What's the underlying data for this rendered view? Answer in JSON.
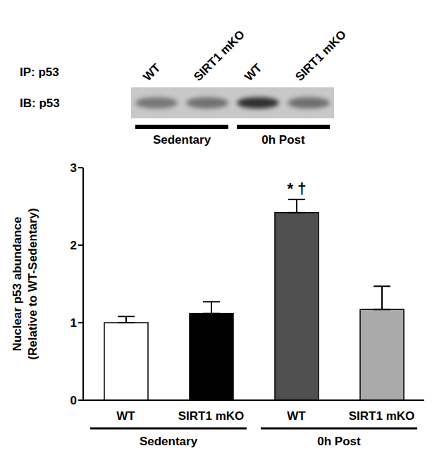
{
  "blot": {
    "ip_label": "IP: p53",
    "ib_label": "IB: p53",
    "lanes": [
      "WT",
      "SIRT1 mKO",
      "WT",
      "SIRT1 mKO"
    ],
    "group_labels": [
      "Sedentary",
      "0h Post"
    ]
  },
  "chart_data": {
    "type": "bar",
    "categories": [
      "WT",
      "SIRT1 mKO",
      "WT",
      "SIRT1 mKO"
    ],
    "values": [
      1.0,
      1.12,
      2.42,
      1.17
    ],
    "errors": [
      0.08,
      0.15,
      0.17,
      0.3
    ],
    "colors": [
      "#ffffff",
      "#000000",
      "#505050",
      "#aaaaaa"
    ],
    "ylim": [
      0,
      3
    ],
    "yticks": [
      0,
      1,
      2,
      3
    ],
    "y_label": "Nuclear p53 abundance\n(Relative to WT-Sedentary)",
    "group_labels": [
      "Sedentary",
      "0h Post"
    ],
    "annotations": [
      {
        "text": "* †",
        "category": 2
      }
    ]
  }
}
